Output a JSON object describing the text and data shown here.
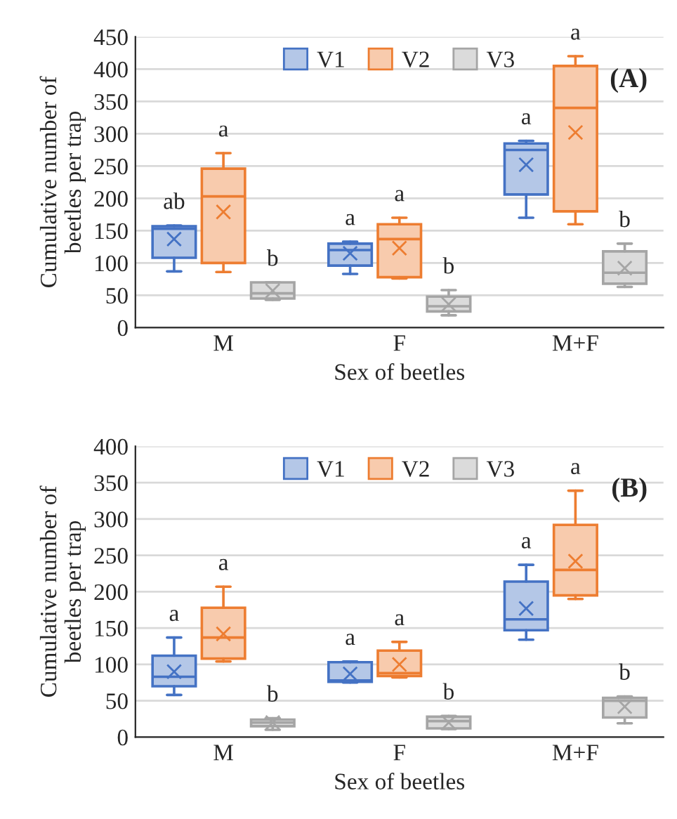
{
  "chart_data": [
    {
      "type": "box",
      "xlabel": "Sex of beetles",
      "ylabel": "Cumulative number of\nbeetles per trap",
      "categories": [
        "M",
        "F",
        "M+F"
      ],
      "ylim": [
        0,
        450
      ],
      "yticks": [
        0,
        50,
        100,
        150,
        200,
        250,
        300,
        350,
        400,
        450
      ],
      "grid": "y",
      "legend": "top",
      "marker": "cross",
      "series": [
        {
          "name": "V1",
          "color": "#4472c4",
          "boxes": [
            {
              "low": 87,
              "q1": 108,
              "median": 153,
              "q3": 157,
              "high": 158,
              "mean": 137
            },
            {
              "low": 83,
              "q1": 96,
              "median": 120,
              "q3": 130,
              "high": 133,
              "mean": 115
            },
            {
              "low": 170,
              "q1": 206,
              "median": 275,
              "q3": 285,
              "high": 289,
              "mean": 252
            }
          ]
        },
        {
          "name": "V2",
          "color": "#ed7d31",
          "boxes": [
            {
              "low": 86,
              "q1": 100,
              "median": 203,
              "q3": 246,
              "high": 270,
              "mean": 179
            },
            {
              "low": 76,
              "q1": 78,
              "median": 137,
              "q3": 160,
              "high": 170,
              "mean": 123
            },
            {
              "low": 160,
              "q1": 180,
              "median": 340,
              "q3": 405,
              "high": 420,
              "mean": 302
            }
          ]
        },
        {
          "name": "V3",
          "color": "#a5a5a5",
          "boxes": [
            {
              "low": 43,
              "q1": 45,
              "median": 53,
              "q3": 70,
              "high": 70,
              "mean": 57
            },
            {
              "low": 19,
              "q1": 25,
              "median": 33,
              "q3": 48,
              "high": 58,
              "mean": 36
            },
            {
              "low": 63,
              "q1": 68,
              "median": 85,
              "q3": 118,
              "high": 130,
              "mean": 92
            }
          ]
        }
      ],
      "annotations": [
        "(A)",
        "ab",
        "a",
        "b",
        "a",
        "a",
        "b",
        "a",
        "a",
        "b"
      ]
    },
    {
      "type": "box",
      "xlabel": "Sex of beetles",
      "ylabel": "Cumulative number of\nbeetles per trap",
      "categories": [
        "M",
        "F",
        "M+F"
      ],
      "ylim": [
        0,
        400
      ],
      "yticks": [
        0,
        50,
        100,
        150,
        200,
        250,
        300,
        350,
        400
      ],
      "grid": "y",
      "legend": "top",
      "marker": "cross",
      "series": [
        {
          "name": "V1",
          "color": "#4472c4",
          "boxes": [
            {
              "low": 58,
              "q1": 70,
              "median": 83,
              "q3": 112,
              "high": 137,
              "mean": 90
            },
            {
              "low": 75,
              "q1": 76,
              "median": 78,
              "q3": 103,
              "high": 104,
              "mean": 87
            },
            {
              "low": 134,
              "q1": 147,
              "median": 162,
              "q3": 214,
              "high": 237,
              "mean": 177
            }
          ]
        },
        {
          "name": "V2",
          "color": "#ed7d31",
          "boxes": [
            {
              "low": 104,
              "q1": 108,
              "median": 137,
              "q3": 178,
              "high": 207,
              "mean": 142
            },
            {
              "low": 82,
              "q1": 84,
              "median": 88,
              "q3": 119,
              "high": 131,
              "mean": 100
            },
            {
              "low": 190,
              "q1": 195,
              "median": 230,
              "q3": 292,
              "high": 339,
              "mean": 242
            }
          ]
        },
        {
          "name": "V3",
          "color": "#a5a5a5",
          "boxes": [
            {
              "low": 10,
              "q1": 15,
              "median": 20,
              "q3": 24,
              "high": 26,
              "mean": 20
            },
            {
              "low": 11,
              "q1": 12,
              "median": 22,
              "q3": 28,
              "high": 29,
              "mean": 20
            },
            {
              "low": 19,
              "q1": 27,
              "median": 50,
              "q3": 54,
              "high": 56,
              "mean": 42
            }
          ]
        }
      ],
      "annotations": [
        "(B)",
        "a",
        "a",
        "b",
        "a",
        "a",
        "b",
        "a",
        "a",
        "b"
      ]
    }
  ]
}
